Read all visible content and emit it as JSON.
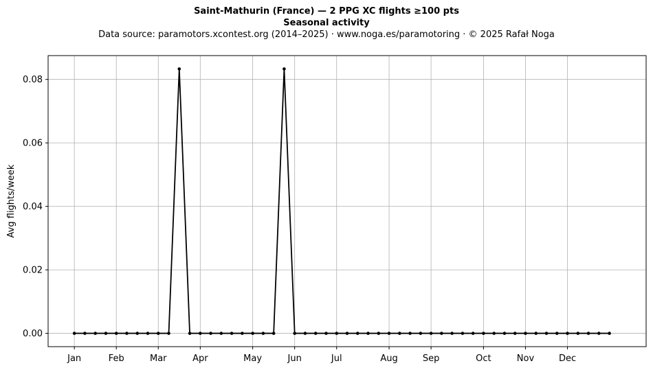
{
  "chart_data": {
    "type": "line",
    "title": "Saint-Mathurin (France)  —  2 PPG XC flights ≥100 pts",
    "subtitle": "Seasonal activity",
    "source": "Data source: paramotors.xcontest.org (2014–2025)  ·  www.noga.es/paramotoring  ·  © 2025 Rafał Noga",
    "xlabel": "",
    "ylabel": "Avg flights/week",
    "x_unit": "week",
    "xlim": [
      -2.5,
      54.5
    ],
    "ylim": [
      -0.0042,
      0.0875
    ],
    "grid": true,
    "month_ticks": [
      {
        "label": "Jan",
        "week": 0
      },
      {
        "label": "Feb",
        "week": 4
      },
      {
        "label": "Mar",
        "week": 8
      },
      {
        "label": "Apr",
        "week": 12
      },
      {
        "label": "May",
        "week": 17
      },
      {
        "label": "Jun",
        "week": 21
      },
      {
        "label": "Jul",
        "week": 25
      },
      {
        "label": "Aug",
        "week": 30
      },
      {
        "label": "Sep",
        "week": 34
      },
      {
        "label": "Oct",
        "week": 39
      },
      {
        "label": "Nov",
        "week": 43
      },
      {
        "label": "Dec",
        "week": 47
      }
    ],
    "y_ticks": [
      {
        "label": "0.00",
        "value": 0
      },
      {
        "label": "0.02",
        "value": 0.02
      },
      {
        "label": "0.04",
        "value": 0.04
      },
      {
        "label": "0.06",
        "value": 0.06
      },
      {
        "label": "0.08",
        "value": 0.08
      }
    ],
    "series": [
      {
        "color": "#000000",
        "x": [
          0,
          1,
          2,
          3,
          4,
          5,
          6,
          7,
          8,
          9,
          10,
          11,
          12,
          13,
          14,
          15,
          16,
          17,
          18,
          19,
          20,
          21,
          22,
          23,
          24,
          25,
          26,
          27,
          28,
          29,
          30,
          31,
          32,
          33,
          34,
          35,
          36,
          37,
          38,
          39,
          40,
          41,
          42,
          43,
          44,
          45,
          46,
          47,
          48,
          49,
          50,
          51
        ],
        "values": [
          0,
          0,
          0,
          0,
          0,
          0,
          0,
          0,
          0,
          0,
          0.0833,
          0,
          0,
          0,
          0,
          0,
          0,
          0,
          0,
          0,
          0.0833,
          0,
          0,
          0,
          0,
          0,
          0,
          0,
          0,
          0,
          0,
          0,
          0,
          0,
          0,
          0,
          0,
          0,
          0,
          0,
          0,
          0,
          0,
          0,
          0,
          0,
          0,
          0,
          0,
          0,
          0,
          0
        ]
      }
    ]
  }
}
